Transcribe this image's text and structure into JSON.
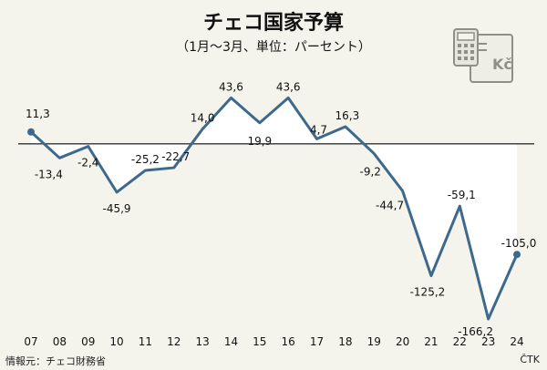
{
  "chart_data": {
    "type": "line",
    "title": "チェコ国家予算",
    "subtitle": "（1月〜3月、単位：パーセント）",
    "x": [
      "07",
      "08",
      "09",
      "10",
      "11",
      "12",
      "13",
      "14",
      "15",
      "16",
      "17",
      "18",
      "19",
      "20",
      "21",
      "22",
      "23",
      "24"
    ],
    "series": [
      {
        "values": [
          11.3,
          -13.4,
          -2.4,
          -45.9,
          -25.2,
          -22.7,
          14.0,
          43.6,
          19.9,
          43.6,
          4.7,
          16.3,
          -9.2,
          -44.7,
          -125.2,
          -59.1,
          -166.2,
          -105.0
        ],
        "value_labels": [
          "11,3",
          "-13,4",
          "-2,4",
          "-45,9",
          "-25,2",
          "-22,7",
          "14,0",
          "43,6",
          "19,9",
          "43,6",
          "4,7",
          "16,3",
          "-9,2",
          "-44,7",
          "-125,2",
          "-59,1",
          "-166,2",
          "-105,0"
        ]
      }
    ],
    "ylim": [
      -180,
      60
    ],
    "baseline": 0,
    "grid": false,
    "line_color": "#3d6a8c",
    "fill_color": "#ffffff"
  },
  "source": "情報元：チェコ財務省",
  "agency": "ČTK",
  "icon_label": "Kč",
  "icon_name": "calculator-banknote-icon"
}
